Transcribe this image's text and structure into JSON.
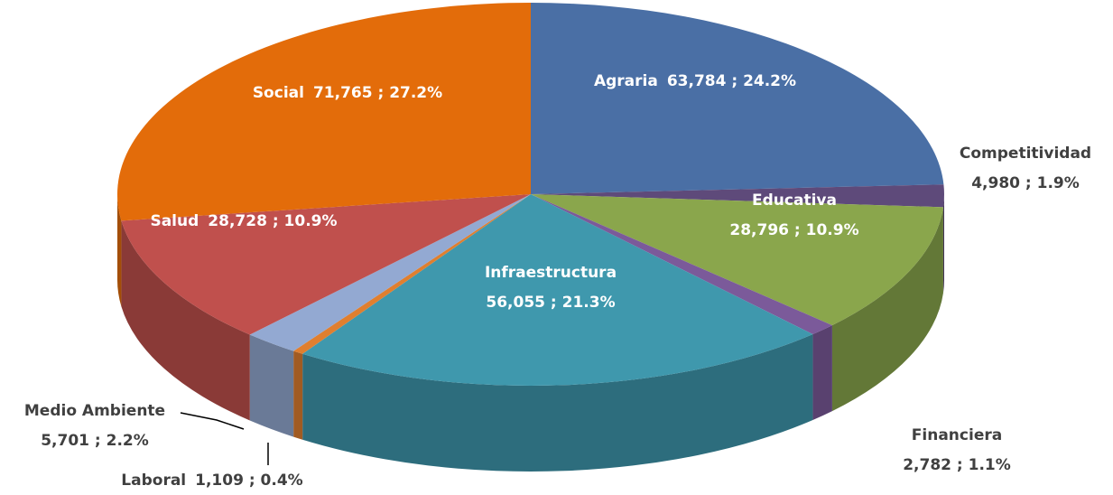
{
  "chart_data": {
    "type": "pie",
    "categories": [
      "Agraria",
      "Competitividad",
      "Educativa",
      "Financiera",
      "Infraestructura",
      "Laboral",
      "Medio Ambiente",
      "Salud",
      "Social"
    ],
    "values": [
      63784,
      4980,
      28796,
      2782,
      56055,
      1109,
      5701,
      28728,
      71765
    ],
    "value_labels": [
      "63,784 ; 24.2%",
      "4,980 ; 1.9%",
      "28,796 ; 10.9%",
      "2,782 ; 1.1%",
      "56,055 ; 21.3%",
      "1,109 ; 0.4%",
      "5,701 ; 2.2%",
      "28,728 ; 10.9%",
      "71,765 ; 27.2%"
    ],
    "colors": [
      "#4a6fa5",
      "#5e4a7a",
      "#8aa64c",
      "#7b5a9a",
      "#3f98ad",
      "#e07f2f",
      "#93a9d2",
      "#c0504d",
      "#e36c0a"
    ]
  }
}
